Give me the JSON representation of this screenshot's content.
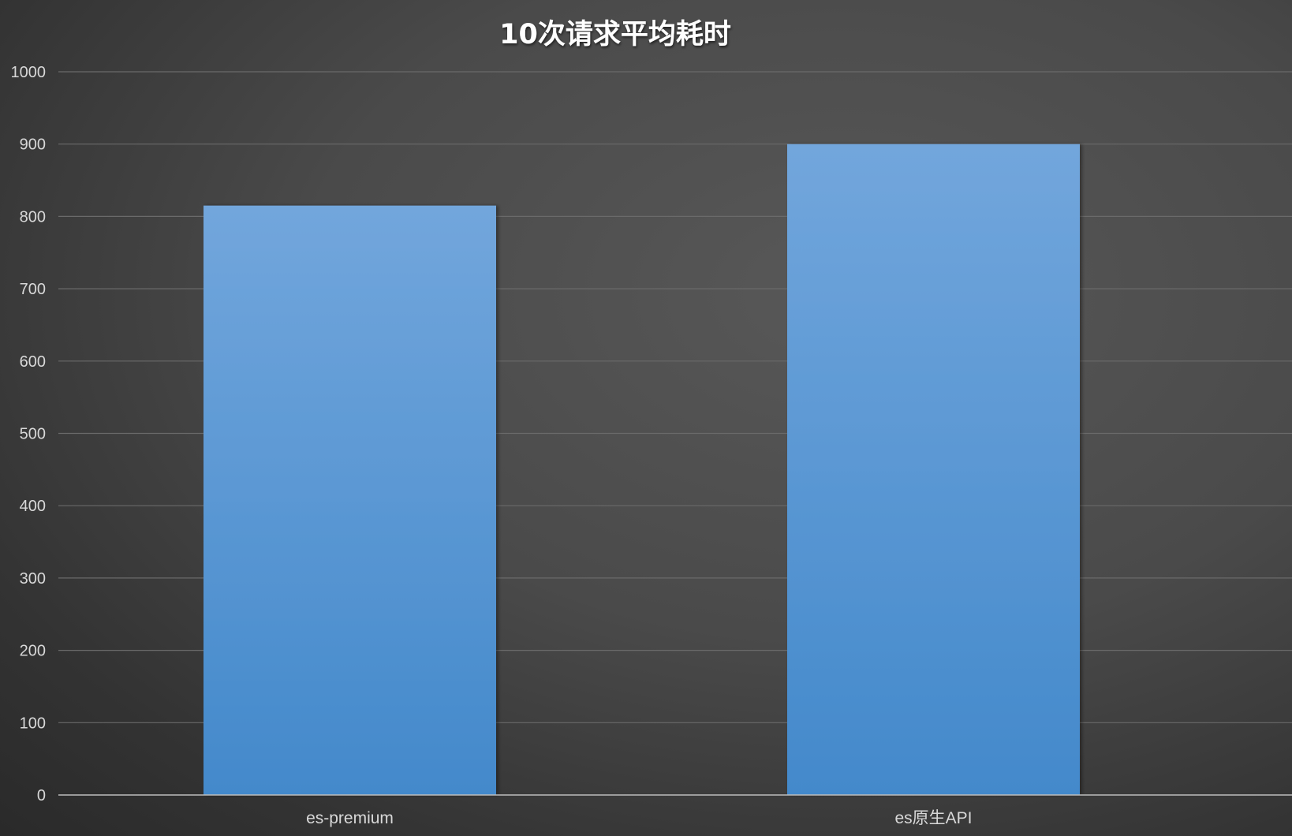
{
  "chart_data": {
    "type": "bar",
    "title": "10次请求平均耗时",
    "categories": [
      "es-premium",
      "es原生API"
    ],
    "values": [
      815,
      900
    ],
    "ylim": [
      0,
      1000
    ],
    "yticks": [
      0,
      100,
      200,
      300,
      400,
      500,
      600,
      700,
      800,
      900,
      1000
    ],
    "grid": true,
    "legend": "none",
    "bar_color_top": "#72a6dc",
    "bar_color_bottom": "#4389cb"
  }
}
